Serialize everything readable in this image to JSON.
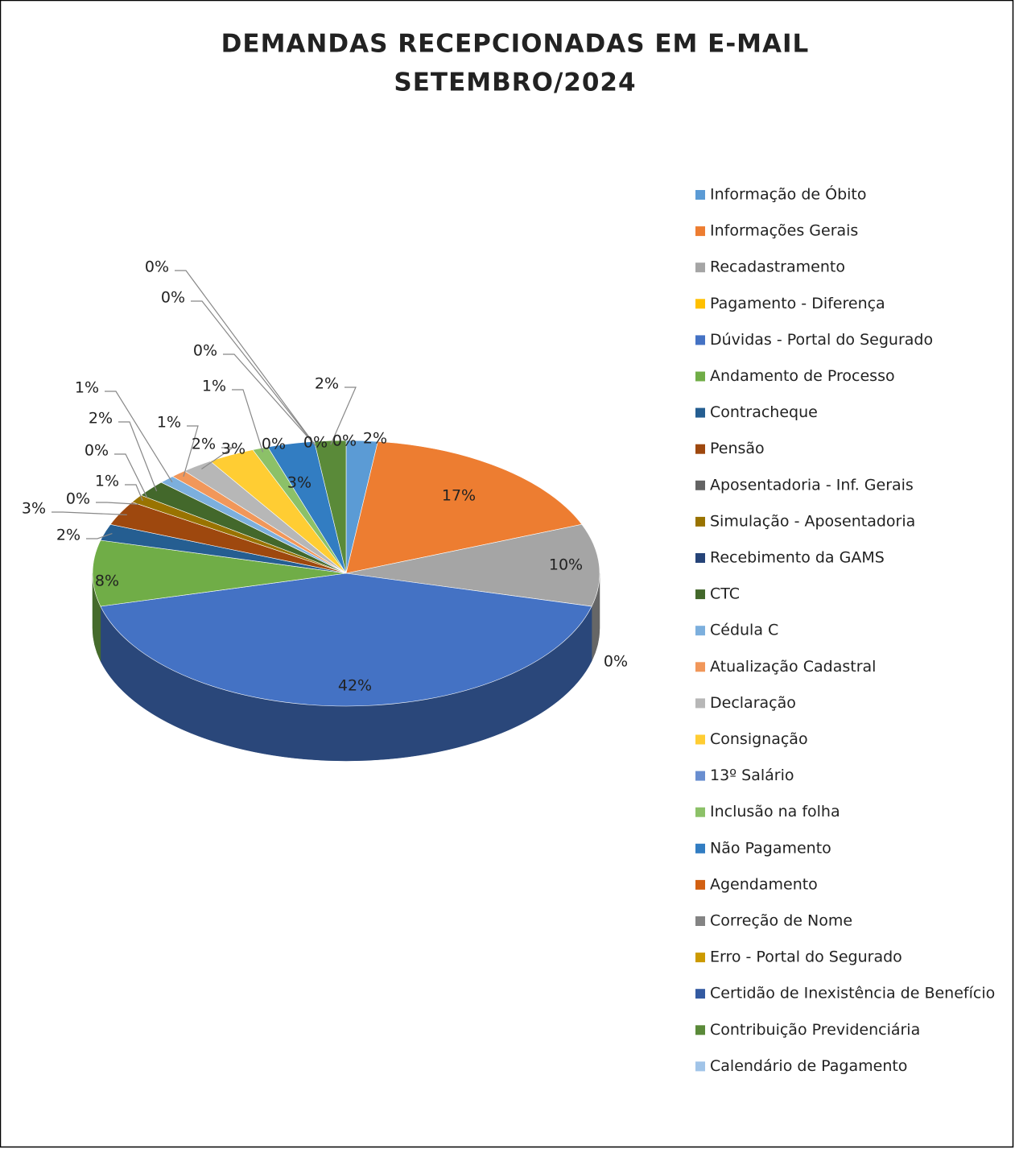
{
  "chart_data": {
    "type": "pie",
    "title": [
      "DEMANDAS RECEPCIONADAS EM E-MAIL",
      "SETEMBRO/2024"
    ],
    "categories": [
      "Informação de Óbito",
      "Informações Gerais",
      "Recadastramento",
      "Pagamento - Diferença",
      "Dúvidas - Portal do Segurado",
      "Andamento de Processo",
      "Contracheque",
      "Pensão",
      "Aposentadoria - Inf. Gerais",
      "Simulação - Aposentadoria",
      "Recebimento da GAMS",
      "CTC",
      "Cédula C",
      "Atualização Cadastral",
      "Declaração",
      "Consignação",
      "13º Salário",
      "Inclusão na folha",
      "Não Pagamento",
      "Agendamento",
      "Correção de Nome",
      "Erro - Portal do Segurado",
      "Certidão de Inexistência de Benefício",
      "Contribuição Previdenciária",
      "Calendário de Pagamento"
    ],
    "values": [
      2,
      17,
      10,
      0,
      42,
      8,
      2,
      3,
      0,
      1,
      0,
      2,
      1,
      1,
      2,
      3,
      0,
      1,
      3,
      0,
      0,
      0,
      0,
      2,
      0
    ],
    "value_labels": [
      "2%",
      "17%",
      "10%",
      "0%",
      "42%",
      "8%",
      "2%",
      "3%",
      "0%",
      "1%",
      "0%",
      "2%",
      "1%",
      "1%",
      "2%",
      "3%",
      "0%",
      "1%",
      "3%",
      "0%",
      "0%",
      "0%",
      "0%",
      "2%",
      "0%"
    ],
    "colors": [
      "#5b9bd5",
      "#ed7d31",
      "#a5a5a5",
      "#ffc000",
      "#4472c4",
      "#70ad47",
      "#255e91",
      "#9e480e",
      "#636363",
      "#997300",
      "#264478",
      "#43682b",
      "#7cafdd",
      "#f1975a",
      "#b7b7b7",
      "#ffcd33",
      "#698ed0",
      "#8cc168",
      "#327dc2",
      "#d26012",
      "#848484",
      "#cc9a00",
      "#335aa1",
      "#5a8a39",
      "#a1c4e8"
    ],
    "legend": "right"
  }
}
